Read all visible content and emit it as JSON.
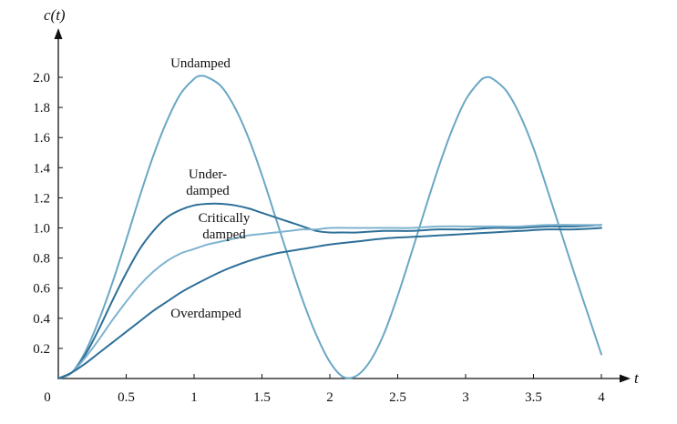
{
  "chart_data": {
    "type": "line",
    "title": "",
    "xlabel": "t",
    "ylabel": "c(t)",
    "xlim": [
      0,
      4
    ],
    "ylim": [
      0,
      2.2
    ],
    "grid": false,
    "legend": "none",
    "x_ticks": [
      "0",
      "0.5",
      "1",
      "1.5",
      "2",
      "2.5",
      "3",
      "3.5",
      "4"
    ],
    "y_ticks": [
      "0.2",
      "0.4",
      "0.6",
      "0.8",
      "1.0",
      "1.2",
      "1.4",
      "1.6",
      "1.8",
      "2.0"
    ],
    "series": [
      {
        "name": "Undamped",
        "color": "#6aa7c4",
        "x": [
          0,
          0.1,
          0.2,
          0.3,
          0.4,
          0.5,
          0.6,
          0.7,
          0.8,
          0.9,
          1.0,
          1.05,
          1.1,
          1.2,
          1.3,
          1.4,
          1.5,
          1.6,
          1.7,
          1.8,
          1.9,
          2.0,
          2.1,
          2.2,
          2.3,
          2.4,
          2.5,
          2.6,
          2.7,
          2.8,
          2.9,
          3.0,
          3.1,
          3.15,
          3.2,
          3.3,
          3.4,
          3.5,
          3.6,
          3.7,
          3.8,
          3.9,
          4.0
        ],
        "values": [
          0,
          0.04,
          0.18,
          0.39,
          0.64,
          0.92,
          1.21,
          1.48,
          1.71,
          1.89,
          1.99,
          2.01,
          2.0,
          1.94,
          1.8,
          1.6,
          1.35,
          1.07,
          0.79,
          0.52,
          0.29,
          0.11,
          0.01,
          0.02,
          0.12,
          0.3,
          0.55,
          0.83,
          1.12,
          1.4,
          1.65,
          1.85,
          1.97,
          2.0,
          1.99,
          1.91,
          1.75,
          1.53,
          1.26,
          0.98,
          0.7,
          0.43,
          0.16
        ]
      },
      {
        "name": "Under-\ndamped",
        "color": "#2d6f98",
        "x": [
          0,
          0.1,
          0.2,
          0.3,
          0.4,
          0.5,
          0.6,
          0.7,
          0.8,
          0.9,
          1.0,
          1.1,
          1.2,
          1.3,
          1.4,
          1.5,
          1.6,
          1.7,
          1.8,
          1.9,
          2.0,
          2.1,
          2.2,
          2.4,
          2.6,
          2.8,
          3.0,
          3.2,
          3.4,
          3.6,
          3.8,
          4.0
        ],
        "values": [
          0,
          0.04,
          0.16,
          0.33,
          0.52,
          0.7,
          0.86,
          0.98,
          1.07,
          1.12,
          1.15,
          1.16,
          1.16,
          1.15,
          1.13,
          1.1,
          1.07,
          1.04,
          1.01,
          0.98,
          0.97,
          0.97,
          0.97,
          0.98,
          0.98,
          0.99,
          0.99,
          1.0,
          1.0,
          1.01,
          1.01,
          1.02
        ]
      },
      {
        "name": "Critically\ndamped",
        "color": "#7fb3cf",
        "x": [
          0,
          0.1,
          0.2,
          0.3,
          0.4,
          0.5,
          0.6,
          0.7,
          0.8,
          0.9,
          1.0,
          1.1,
          1.2,
          1.3,
          1.4,
          1.5,
          1.6,
          1.7,
          1.8,
          1.9,
          2.0,
          2.2,
          2.4,
          2.6,
          2.8,
          3.0,
          3.2,
          3.4,
          3.6,
          3.8,
          4.0
        ],
        "values": [
          0,
          0.04,
          0.14,
          0.26,
          0.39,
          0.51,
          0.62,
          0.71,
          0.78,
          0.83,
          0.86,
          0.89,
          0.91,
          0.93,
          0.95,
          0.96,
          0.97,
          0.98,
          0.99,
          0.99,
          1.0,
          1.0,
          1.0,
          1.0,
          1.01,
          1.01,
          1.01,
          1.01,
          1.02,
          1.02,
          1.02
        ]
      },
      {
        "name": "Overdamped",
        "color": "#2d6f98",
        "x": [
          0,
          0.1,
          0.2,
          0.3,
          0.4,
          0.5,
          0.6,
          0.7,
          0.8,
          0.9,
          1.0,
          1.2,
          1.4,
          1.6,
          1.8,
          2.0,
          2.2,
          2.4,
          2.6,
          2.8,
          3.0,
          3.2,
          3.4,
          3.6,
          3.8,
          4.0
        ],
        "values": [
          0,
          0.04,
          0.1,
          0.17,
          0.24,
          0.31,
          0.38,
          0.45,
          0.51,
          0.57,
          0.62,
          0.71,
          0.78,
          0.83,
          0.86,
          0.89,
          0.91,
          0.93,
          0.94,
          0.95,
          0.96,
          0.97,
          0.98,
          0.99,
          0.99,
          1.0
        ]
      }
    ]
  }
}
